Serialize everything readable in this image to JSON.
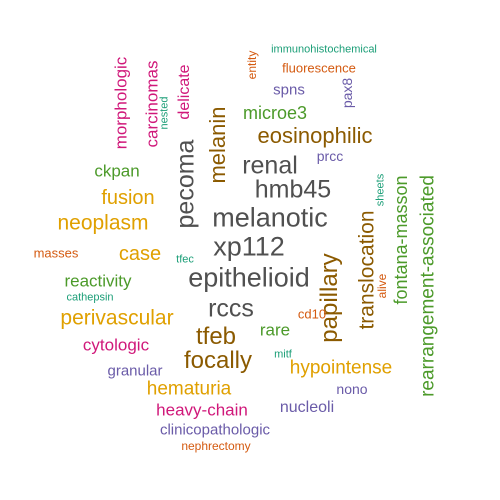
{
  "words": [
    {
      "text": "epithelioid",
      "color": "#505050"
    },
    {
      "text": "melanotic",
      "color": "#505050"
    },
    {
      "text": "xp112",
      "color": "#505050"
    },
    {
      "text": "hmb45",
      "color": "#505050"
    },
    {
      "text": "renal",
      "color": "#505050"
    },
    {
      "text": "pecoma",
      "color": "#505050"
    },
    {
      "text": "rccs",
      "color": "#505050"
    },
    {
      "text": "papillary",
      "color": "#8B5A00"
    },
    {
      "text": "translocation",
      "color": "#8B5A00"
    },
    {
      "text": "tfeb",
      "color": "#8B5A00"
    },
    {
      "text": "focally",
      "color": "#8B5A00"
    },
    {
      "text": "melanin",
      "color": "#8B5A00"
    },
    {
      "text": "eosinophilic",
      "color": "#8B5A00"
    },
    {
      "text": "rearrangement-associated",
      "color": "#4C9A2A"
    },
    {
      "text": "fontana-masson",
      "color": "#4C9A2A"
    },
    {
      "text": "microe3",
      "color": "#4C9A2A"
    },
    {
      "text": "reactivity",
      "color": "#4C9A2A"
    },
    {
      "text": "ckpan",
      "color": "#4C9A2A"
    },
    {
      "text": "rare",
      "color": "#4C9A2A"
    },
    {
      "text": "hematuria",
      "color": "#E0A000"
    },
    {
      "text": "hypointense",
      "color": "#E0A000"
    },
    {
      "text": "perivascular",
      "color": "#E0A000"
    },
    {
      "text": "neoplasm",
      "color": "#E0A000"
    },
    {
      "text": "fusion",
      "color": "#E0A000"
    },
    {
      "text": "case",
      "color": "#E0A000"
    },
    {
      "text": "heavy-chain",
      "color": "#D0187A"
    },
    {
      "text": "cytologic",
      "color": "#D0187A"
    },
    {
      "text": "morphologic",
      "color": "#D0187A"
    },
    {
      "text": "carcinomas",
      "color": "#D0187A"
    },
    {
      "text": "delicate",
      "color": "#D0187A"
    },
    {
      "text": "nucleoli",
      "color": "#6A5BA8"
    },
    {
      "text": "clinicopathologic",
      "color": "#6A5BA8"
    },
    {
      "text": "granular",
      "color": "#6A5BA8"
    },
    {
      "text": "spns",
      "color": "#6A5BA8"
    },
    {
      "text": "pax8",
      "color": "#6A5BA8"
    },
    {
      "text": "prcc",
      "color": "#6A5BA8"
    },
    {
      "text": "nono",
      "color": "#6A5BA8"
    },
    {
      "text": "fluorescence",
      "color": "#D45A10"
    },
    {
      "text": "entity",
      "color": "#D45A10"
    },
    {
      "text": "cd10",
      "color": "#D45A10"
    },
    {
      "text": "masses",
      "color": "#D45A10"
    },
    {
      "text": "alive",
      "color": "#D45A10"
    },
    {
      "text": "nephrectomy",
      "color": "#D45A10"
    },
    {
      "text": "immunohistochemical",
      "color": "#1B9E77"
    },
    {
      "text": "nested",
      "color": "#1B9E77"
    },
    {
      "text": "sheets",
      "color": "#1B9E77"
    },
    {
      "text": "tfec",
      "color": "#1B9E77"
    },
    {
      "text": "cathepsin",
      "color": "#1B9E77"
    },
    {
      "text": "mitf",
      "color": "#1B9E77"
    }
  ]
}
